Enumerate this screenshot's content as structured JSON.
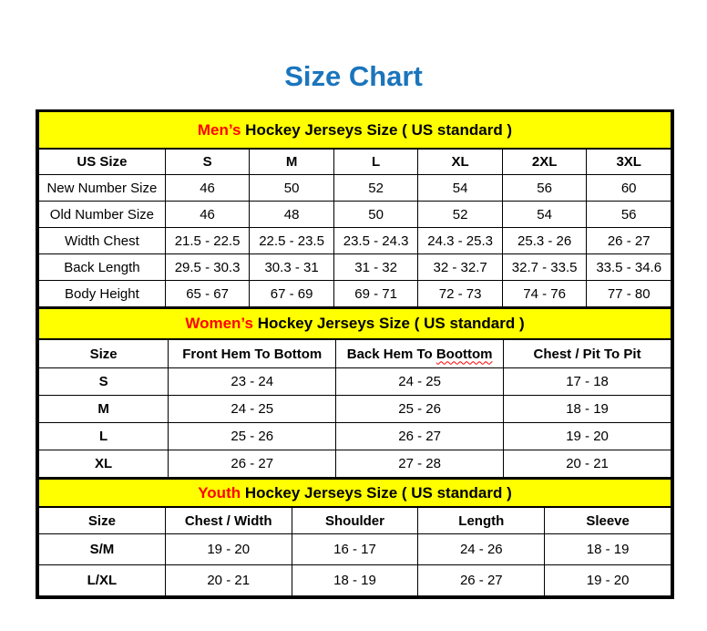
{
  "title": "Size Chart",
  "colors": {
    "title": "#1B75BC",
    "accent": "#FF0000",
    "band": "#FFFF00",
    "border": "#000000"
  },
  "sections": {
    "mens": {
      "band_highlight": "Men’s",
      "band_rest": "Hockey Jerseys Size ( US standard )",
      "header": [
        "US Size",
        "S",
        "M",
        "L",
        "XL",
        "2XL",
        "3XL"
      ],
      "rows": [
        {
          "label": "New Number Size",
          "values": [
            "46",
            "50",
            "52",
            "54",
            "56",
            "60"
          ]
        },
        {
          "label": "Old Number Size",
          "values": [
            "46",
            "48",
            "50",
            "52",
            "54",
            "56"
          ]
        },
        {
          "label": "Width Chest",
          "values": [
            "21.5 - 22.5",
            "22.5 - 23.5",
            "23.5 - 24.3",
            "24.3 - 25.3",
            "25.3 - 26",
            "26 - 27"
          ]
        },
        {
          "label": "Back Length",
          "values": [
            "29.5 - 30.3",
            "30.3 - 31",
            "31 - 32",
            "32 - 32.7",
            "32.7 - 33.5",
            "33.5 - 34.6"
          ]
        },
        {
          "label": "Body Height",
          "values": [
            "65 - 67",
            "67 - 69",
            "69 - 71",
            "72 - 73",
            "74 - 76",
            "77 - 80"
          ]
        }
      ]
    },
    "womens": {
      "band_highlight": "Women’s",
      "band_rest": "Hockey Jerseys Size ( US standard )",
      "header": [
        "Size",
        "Front Hem To Bottom",
        "Back Hem To Boottom",
        "Chest / Pit To Pit"
      ],
      "header_misspelled_parts": {
        "prefix": "Back Hem To",
        "word": "Boottom"
      },
      "rows": [
        {
          "label": "S",
          "values": [
            "23 - 24",
            "24 - 25",
            "17 - 18"
          ]
        },
        {
          "label": "M",
          "values": [
            "24 - 25",
            "25 - 26",
            "18 - 19"
          ]
        },
        {
          "label": "L",
          "values": [
            "25 - 26",
            "26 - 27",
            "19 - 20"
          ]
        },
        {
          "label": "XL",
          "values": [
            "26 - 27",
            "27 - 28",
            "20 - 21"
          ]
        }
      ]
    },
    "youth": {
      "band_highlight": "Youth",
      "band_rest": "Hockey Jerseys Size ( US standard )",
      "header": [
        "Size",
        "Chest / Width",
        "Shoulder",
        "Length",
        "Sleeve"
      ],
      "rows": [
        {
          "label": "S/M",
          "values": [
            "19 - 20",
            "16 - 17",
            "24 - 26",
            "18 - 19"
          ]
        },
        {
          "label": "L/XL",
          "values": [
            "20 - 21",
            "18 - 19",
            "26 - 27",
            "19 - 20"
          ]
        }
      ]
    }
  }
}
